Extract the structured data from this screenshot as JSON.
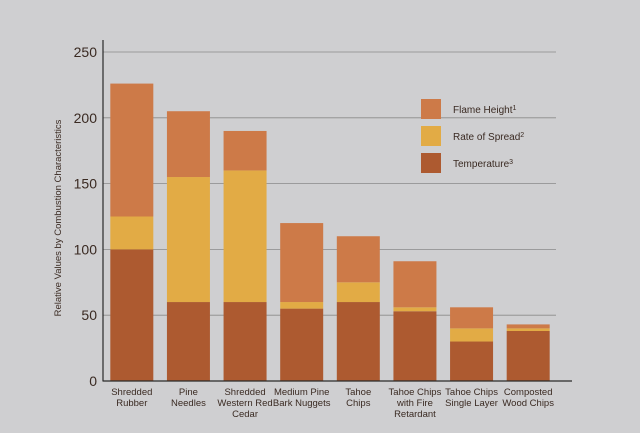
{
  "chart_data": {
    "type": "bar",
    "stacked": true,
    "ylabel": "Relative Values by Combustion Characteristics",
    "ylim": [
      0,
      250
    ],
    "yticks": [
      0,
      50,
      100,
      150,
      200,
      250
    ],
    "grid": true,
    "legend_position": "top-right",
    "categories": [
      [
        "Shredded",
        "Rubber"
      ],
      [
        "Pine",
        "Needles"
      ],
      [
        "Shredded",
        "Western Red",
        "Cedar"
      ],
      [
        "Medium Pine",
        "Bark Nuggets"
      ],
      [
        "Tahoe",
        "Chips"
      ],
      [
        "Tahoe Chips",
        "with Fire",
        "Retardant"
      ],
      [
        "Tahoe Chips",
        "Single Layer"
      ],
      [
        "Composted",
        "Wood Chips"
      ]
    ],
    "series": [
      {
        "name": "Temperature",
        "sup": "3",
        "color": "#ad5a30",
        "values": [
          100,
          60,
          60,
          55,
          60,
          53,
          30,
          38
        ]
      },
      {
        "name": "Rate of Spread",
        "sup": "2",
        "color": "#e2ab45",
        "values": [
          25,
          95,
          100,
          5,
          15,
          3,
          10,
          2
        ]
      },
      {
        "name": "Flame Height",
        "sup": "1",
        "color": "#cd7a48",
        "values": [
          101,
          50,
          30,
          60,
          35,
          35,
          16,
          3
        ]
      }
    ],
    "legend_order": [
      2,
      1,
      0
    ]
  }
}
